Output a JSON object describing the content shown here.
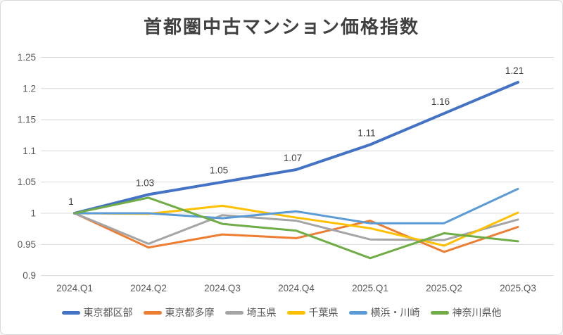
{
  "chart_data": {
    "type": "line",
    "title": "首都圏中古マンション価格指数",
    "categories": [
      "2024.Q1",
      "2024.Q2",
      "2024.Q3",
      "2024.Q4",
      "2025.Q1",
      "2025.Q2",
      "2025.Q3"
    ],
    "series": [
      {
        "name": "東京都区部",
        "color": "#4472C4",
        "line_width": 4,
        "values": [
          1,
          1.03,
          1.05,
          1.07,
          1.11,
          1.16,
          1.21
        ],
        "data_labels": [
          "1",
          "1.03",
          "1.05",
          "1.07",
          "1.11",
          "1.16",
          "1.21"
        ]
      },
      {
        "name": "東京都多摩",
        "color": "#ED7D31",
        "line_width": 3,
        "values": [
          1,
          0.945,
          0.966,
          0.96,
          0.988,
          0.938,
          0.978
        ],
        "data_labels": []
      },
      {
        "name": "埼玉県",
        "color": "#A5A5A5",
        "line_width": 3,
        "values": [
          1,
          0.951,
          0.997,
          0.988,
          0.958,
          0.957,
          0.99
        ],
        "data_labels": []
      },
      {
        "name": "千葉県",
        "color": "#FFC000",
        "line_width": 3,
        "values": [
          1,
          0.999,
          1.012,
          0.993,
          0.976,
          0.948,
          1.001
        ],
        "data_labels": []
      },
      {
        "name": "横浜・川崎",
        "color": "#5B9BD5",
        "line_width": 3,
        "values": [
          1,
          1.0,
          0.992,
          1.003,
          0.984,
          0.984,
          1.039
        ],
        "data_labels": []
      },
      {
        "name": "神奈川県他",
        "color": "#70AD47",
        "line_width": 3,
        "values": [
          1,
          1.025,
          0.983,
          0.972,
          0.928,
          0.968,
          0.955
        ],
        "data_labels": []
      }
    ],
    "y_axis": {
      "min": 0.9,
      "max": 1.25,
      "step": 0.05,
      "tick_labels": [
        "1.25",
        "1.2",
        "1.15",
        "1.1",
        "1.05",
        "1",
        "0.95",
        "0.9"
      ]
    },
    "x_axis": {
      "labels": [
        "2024.Q1",
        "2024.Q2",
        "2024.Q3",
        "2024.Q4",
        "2025.Q1",
        "2025.Q2",
        "2025.Q3"
      ]
    },
    "grid": true,
    "legend_position": "bottom",
    "colors": {
      "gridline": "#D9D9D9",
      "axis_text": "#595959",
      "title_text": "#404040",
      "data_label_text": "#404040",
      "background": "#FFFFFF",
      "border": "#D9D9D9"
    }
  }
}
